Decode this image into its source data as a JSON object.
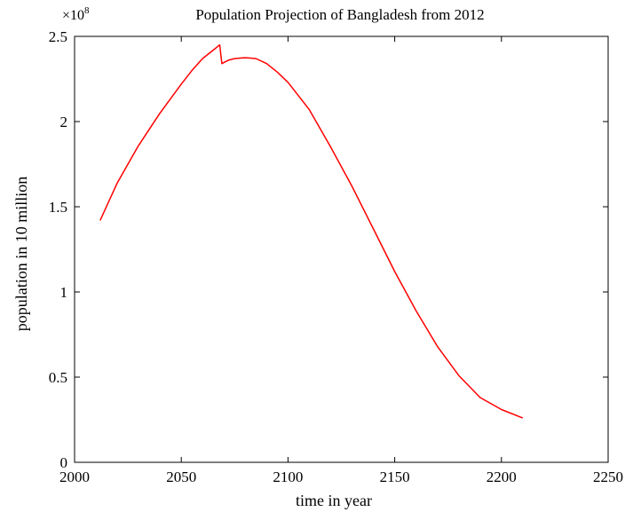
{
  "chart_data": {
    "type": "line",
    "title": "Population Projection of Bangladesh from 2012",
    "xlabel": "time in year",
    "ylabel": "population in 10 million",
    "y_multiplier": "×10",
    "y_multiplier_exp": "8",
    "xlim": [
      2000,
      2250
    ],
    "ylim": [
      0,
      2.5
    ],
    "xticks": [
      "2000",
      "2050",
      "2100",
      "2150",
      "2200",
      "2250"
    ],
    "yticks": [
      "0",
      "0.5",
      "1",
      "1.5",
      "2",
      "2.5"
    ],
    "grid": false,
    "series": [
      {
        "color": "#ff0000",
        "x": [
          2012,
          2020,
          2030,
          2040,
          2050,
          2055,
          2060,
          2065,
          2068,
          2069,
          2072,
          2075,
          2080,
          2085,
          2090,
          2095,
          2100,
          2110,
          2120,
          2130,
          2140,
          2150,
          2160,
          2170,
          2180,
          2190,
          2200,
          2210
        ],
        "y": [
          1.42,
          1.64,
          1.86,
          2.05,
          2.22,
          2.3,
          2.37,
          2.42,
          2.45,
          2.34,
          2.36,
          2.37,
          2.375,
          2.37,
          2.34,
          2.29,
          2.23,
          2.07,
          1.85,
          1.62,
          1.37,
          1.12,
          0.89,
          0.68,
          0.51,
          0.38,
          0.31,
          0.26
        ]
      }
    ]
  }
}
